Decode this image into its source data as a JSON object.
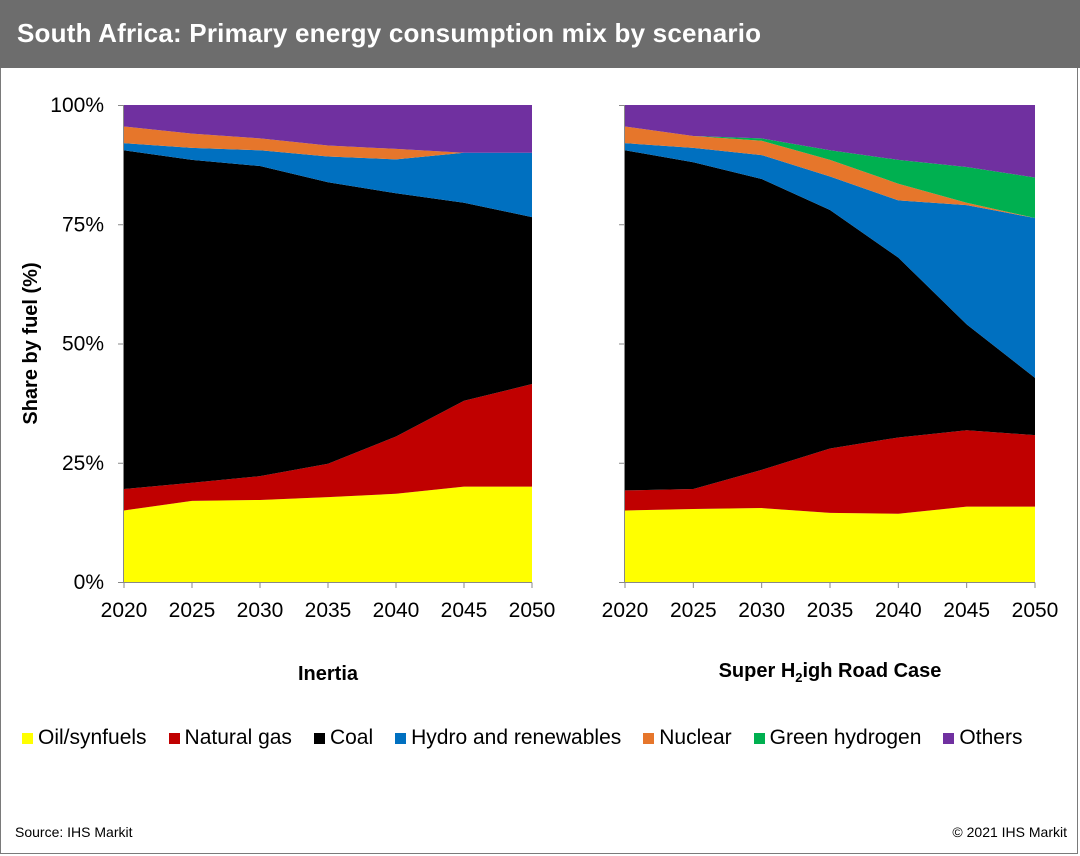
{
  "title": "South Africa: Primary energy consumption mix by scenario",
  "source": "Source: IHS Markit",
  "copyright": "© 2021 IHS Markit",
  "colors": {
    "Oil/synfuels": "#ffff00",
    "Natural gas": "#c00000",
    "Coal": "#000000",
    "Hydro and renewables": "#0070c0",
    "Nuclear": "#e6762b",
    "Green hydrogen": "#00b050",
    "Others": "#7030a0"
  },
  "legend": [
    "Oil/synfuels",
    "Natural gas",
    "Coal",
    "Hydro and renewables",
    "Nuclear",
    "Green hydrogen",
    "Others"
  ],
  "chart_data": [
    {
      "type": "area",
      "stacked": true,
      "xlabel": "Inertia",
      "ylabel": "Share by fuel (%)",
      "x": [
        2020,
        2025,
        2030,
        2035,
        2040,
        2045,
        2050
      ],
      "y_ticks": [
        "0%",
        "25%",
        "50%",
        "75%",
        "100%"
      ],
      "ylim": [
        0,
        100
      ],
      "series": [
        {
          "name": "Oil/synfuels",
          "values": [
            15,
            17,
            17.2,
            17.8,
            18.5,
            20,
            20
          ]
        },
        {
          "name": "Natural gas",
          "values": [
            4.5,
            3.8,
            5,
            7,
            12,
            18,
            21.5
          ]
        },
        {
          "name": "Coal",
          "values": [
            71,
            67.7,
            65,
            59,
            51,
            41.5,
            35
          ]
        },
        {
          "name": "Hydro and renewables",
          "values": [
            1.5,
            2.5,
            3.3,
            5.4,
            7.1,
            10.5,
            13.5
          ]
        },
        {
          "name": "Nuclear",
          "values": [
            3.5,
            3,
            2.5,
            2.3,
            2.2,
            0,
            0
          ]
        },
        {
          "name": "Green hydrogen",
          "values": [
            0,
            0,
            0,
            0,
            0,
            0,
            0
          ]
        },
        {
          "name": "Others",
          "values": [
            4.5,
            6,
            7,
            8.5,
            9.2,
            10,
            10
          ]
        }
      ]
    },
    {
      "type": "area",
      "stacked": true,
      "xlabel_parts": [
        "Super H",
        "2",
        "igh Road Case"
      ],
      "x": [
        2020,
        2025,
        2030,
        2035,
        2040,
        2045,
        2050
      ],
      "ylim": [
        0,
        100
      ],
      "series": [
        {
          "name": "Oil/synfuels",
          "values": [
            15,
            15.3,
            15.5,
            14.5,
            14.3,
            15.8,
            15.8
          ]
        },
        {
          "name": "Natural gas",
          "values": [
            4.2,
            4.2,
            8,
            13.5,
            16,
            16,
            15
          ]
        },
        {
          "name": "Coal",
          "values": [
            71.3,
            68.5,
            61,
            50,
            37.7,
            22.2,
            12
          ]
        },
        {
          "name": "Hydro and renewables",
          "values": [
            1.5,
            3,
            5,
            7,
            12,
            25,
            33.5
          ]
        },
        {
          "name": "Nuclear",
          "values": [
            3.5,
            2.5,
            3,
            3.5,
            3.5,
            0.5,
            0
          ]
        },
        {
          "name": "Green hydrogen",
          "values": [
            0,
            0,
            0.5,
            2,
            5,
            7.5,
            8.5
          ]
        },
        {
          "name": "Others",
          "values": [
            4.5,
            6.5,
            7,
            9.5,
            11.5,
            13,
            15.2
          ]
        }
      ]
    }
  ]
}
